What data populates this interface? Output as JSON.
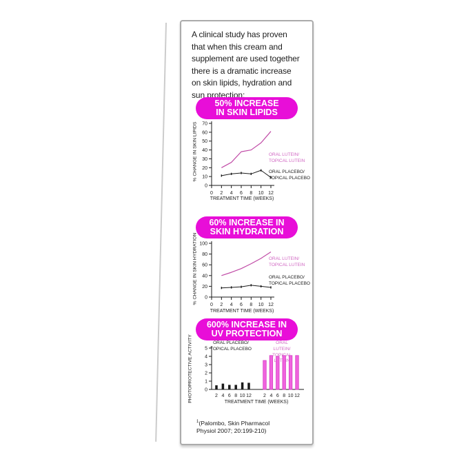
{
  "panel": {
    "intro_text": "A clinical study has proven\nthat when this cream and\nsupplement are used together\nthere is a dramatic increase\non skin lipids, hydration and\nsun protection:",
    "footnote_sup": "1",
    "footnote_text": "(Palombo, Skin Pharmacol\nPhysiol 2007; 20:199-210)"
  },
  "colors": {
    "magenta": "#E80ED8",
    "line_pink": "#C04AA6",
    "legend_pink": "#D066C2",
    "bar_pink": "#F063DE",
    "bar_pink_stroke": "#D63CC4",
    "black": "#1A1A1A"
  },
  "sections": [
    {
      "badge": "50% INCREASE\nIN SKIN LIPIDS"
    },
    {
      "badge": "60% INCREASE IN\nSKIN HYDRATION"
    },
    {
      "badge": "600% INCREASE IN\nUV PROTECTION"
    }
  ],
  "chart_data": [
    {
      "type": "line",
      "title": "50% INCREASE IN SKIN LIPIDS",
      "x": [
        2,
        4,
        6,
        8,
        10,
        12
      ],
      "xticks": [
        0,
        2,
        4,
        6,
        8,
        10,
        12
      ],
      "xlabel": "TREATMENT TIME (WEEKS)",
      "ylabel": "% CHANGE IN SKIN LIPIDS",
      "ylim": [
        0,
        70
      ],
      "ytick_step": 10,
      "legend_position": "right",
      "series": [
        {
          "name": "ORAL LUTEIN/\nTOPICAL LUTEIN",
          "color_key": "line_pink",
          "markers": false,
          "values": [
            20,
            26,
            38,
            40,
            48,
            61
          ]
        },
        {
          "name": "ORAL PLACEBO/\nTOPICAL PLACEBO",
          "color_key": "black",
          "markers": true,
          "values": [
            11,
            13,
            14,
            13,
            17,
            9
          ]
        }
      ]
    },
    {
      "type": "line",
      "title": "60% INCREASE IN SKIN HYDRATION",
      "x": [
        2,
        4,
        6,
        8,
        10,
        12
      ],
      "xticks": [
        0,
        2,
        4,
        6,
        8,
        10,
        12
      ],
      "xlabel": "TREATMENT TIME (WEEKS)",
      "ylabel": "% CHANGE IN SKIN HYDRATION",
      "ylim": [
        0,
        100
      ],
      "ytick_step": 20,
      "legend_position": "right",
      "series": [
        {
          "name": "ORAL LUTEIN/\nTOPICAL LUTEIN",
          "color_key": "line_pink",
          "markers": false,
          "values": [
            40,
            46,
            53,
            62,
            72,
            84
          ]
        },
        {
          "name": "ORAL PLACEBO/\nTOPICAL PLACEBO",
          "color_key": "black",
          "markers": true,
          "values": [
            17,
            18,
            19,
            22,
            20,
            18
          ]
        }
      ]
    },
    {
      "type": "bar",
      "title": "600% INCREASE IN UV PROTECTION",
      "categories": [
        2,
        4,
        6,
        8,
        10,
        12
      ],
      "xlabel": "TREATMENT TIME (WEEKS)",
      "ylabel": "PHOTOPROTECTIVE ACTIVITY",
      "ylim": [
        0,
        5
      ],
      "ytick_step": 1,
      "groups": [
        {
          "name": "ORAL PLACEBO/\nTOPICAL PLACEBO",
          "color_key": "black",
          "values": [
            0.5,
            0.7,
            0.55,
            0.55,
            0.85,
            0.8
          ]
        },
        {
          "name": "ORAL LUTEIN/\nTOPICAL LUTEIN",
          "color_key": "bar_pink",
          "values": [
            3.5,
            4.1,
            4.0,
            4.1,
            4.1,
            4.1
          ]
        }
      ]
    }
  ]
}
